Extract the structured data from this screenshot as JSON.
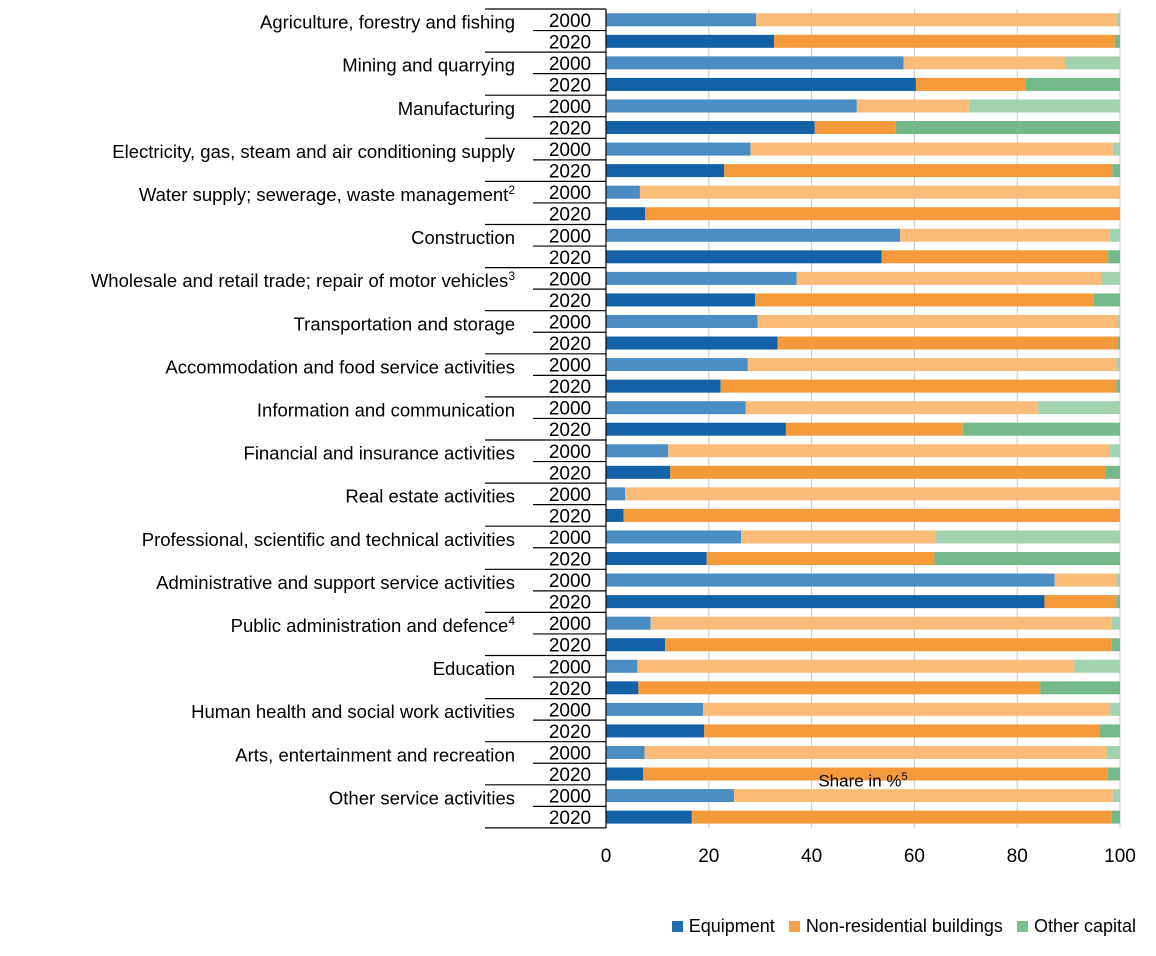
{
  "chart_data": {
    "type": "bar",
    "orientation": "horizontal",
    "stacked": true,
    "xlabel": "Share in %",
    "xlabel_sup": "5",
    "xlim": [
      0,
      100
    ],
    "xticks": [
      0,
      20,
      40,
      60,
      80,
      100
    ],
    "grid": true,
    "legend_position": "bottom-right",
    "years": [
      "2000",
      "2020"
    ],
    "legend": [
      {
        "name": "Equipment",
        "color": "#1f6fb0"
      },
      {
        "name": "Non-residential buildings",
        "color": "#f5a24a"
      },
      {
        "name": "Other capital",
        "color": "#7cc08f"
      }
    ],
    "categories": [
      {
        "label": "Agriculture, forestry and fishing",
        "sup": "",
        "y2000": [
          29.2,
          70.2,
          0.6
        ],
        "y2020": [
          32.7,
          66.3,
          1.0
        ]
      },
      {
        "label": "Mining and quarrying",
        "sup": "",
        "y2000": [
          57.9,
          31.4,
          10.7
        ],
        "y2020": [
          60.3,
          21.4,
          18.3
        ]
      },
      {
        "label": "Manufacturing",
        "sup": "",
        "y2000": [
          48.8,
          21.8,
          29.4
        ],
        "y2020": [
          40.6,
          15.8,
          43.6
        ]
      },
      {
        "label": "Electricity, gas, steam and air conditioning supply",
        "sup": "",
        "y2000": [
          28.1,
          70.5,
          1.4
        ],
        "y2020": [
          23.0,
          75.5,
          1.5
        ]
      },
      {
        "label": "Water supply; sewerage, waste management",
        "sup": "2",
        "y2000": [
          6.6,
          93.4,
          0.0
        ],
        "y2020": [
          7.6,
          92.4,
          0.0
        ]
      },
      {
        "label": "Construction",
        "sup": "",
        "y2000": [
          57.2,
          40.8,
          2.0
        ],
        "y2020": [
          53.6,
          44.1,
          2.3
        ]
      },
      {
        "label": "Wholesale and retail trade; repair of motor vehicles",
        "sup": "3",
        "y2000": [
          37.1,
          59.3,
          3.6
        ],
        "y2020": [
          29.0,
          65.8,
          5.2
        ]
      },
      {
        "label": "Transportation and storage",
        "sup": "",
        "y2000": [
          29.5,
          70.0,
          0.5
        ],
        "y2020": [
          33.4,
          66.1,
          0.5
        ]
      },
      {
        "label": "Accommodation and food service activities",
        "sup": "",
        "y2000": [
          27.6,
          71.7,
          0.7
        ],
        "y2020": [
          22.3,
          77.0,
          0.7
        ]
      },
      {
        "label": "Information and communication",
        "sup": "",
        "y2000": [
          27.2,
          56.9,
          15.9
        ],
        "y2020": [
          35.0,
          34.4,
          30.6
        ]
      },
      {
        "label": "Financial and insurance activities",
        "sup": "",
        "y2000": [
          12.1,
          85.8,
          2.1
        ],
        "y2020": [
          12.5,
          84.6,
          2.9
        ]
      },
      {
        "label": "Real estate activities",
        "sup": "",
        "y2000": [
          3.7,
          96.3,
          0.0
        ],
        "y2020": [
          3.4,
          96.6,
          0.0
        ]
      },
      {
        "label": "Professional, scientific and technical activities",
        "sup": "",
        "y2000": [
          26.3,
          37.9,
          35.8
        ],
        "y2020": [
          19.6,
          44.3,
          36.1
        ]
      },
      {
        "label": "Administrative and support service activities",
        "sup": "",
        "y2000": [
          87.3,
          12.0,
          0.7
        ],
        "y2020": [
          85.3,
          14.0,
          0.7
        ]
      },
      {
        "label": "Public administration and defence",
        "sup": "4",
        "y2000": [
          8.7,
          89.7,
          1.6
        ],
        "y2020": [
          11.5,
          86.9,
          1.6
        ]
      },
      {
        "label": "Education",
        "sup": "",
        "y2000": [
          6.1,
          85.0,
          8.9
        ],
        "y2020": [
          6.3,
          78.2,
          15.5
        ]
      },
      {
        "label": "Human health and social work activities",
        "sup": "",
        "y2000": [
          18.9,
          79.2,
          1.9
        ],
        "y2020": [
          19.1,
          76.9,
          4.0
        ]
      },
      {
        "label": "Arts, entertainment and recreation",
        "sup": "",
        "y2000": [
          7.5,
          89.9,
          2.6
        ],
        "y2020": [
          7.2,
          90.4,
          2.4
        ]
      },
      {
        "label": "Other service activities",
        "sup": "",
        "y2000": [
          24.9,
          73.7,
          1.4
        ],
        "y2020": [
          16.7,
          81.7,
          1.6
        ]
      }
    ]
  }
}
